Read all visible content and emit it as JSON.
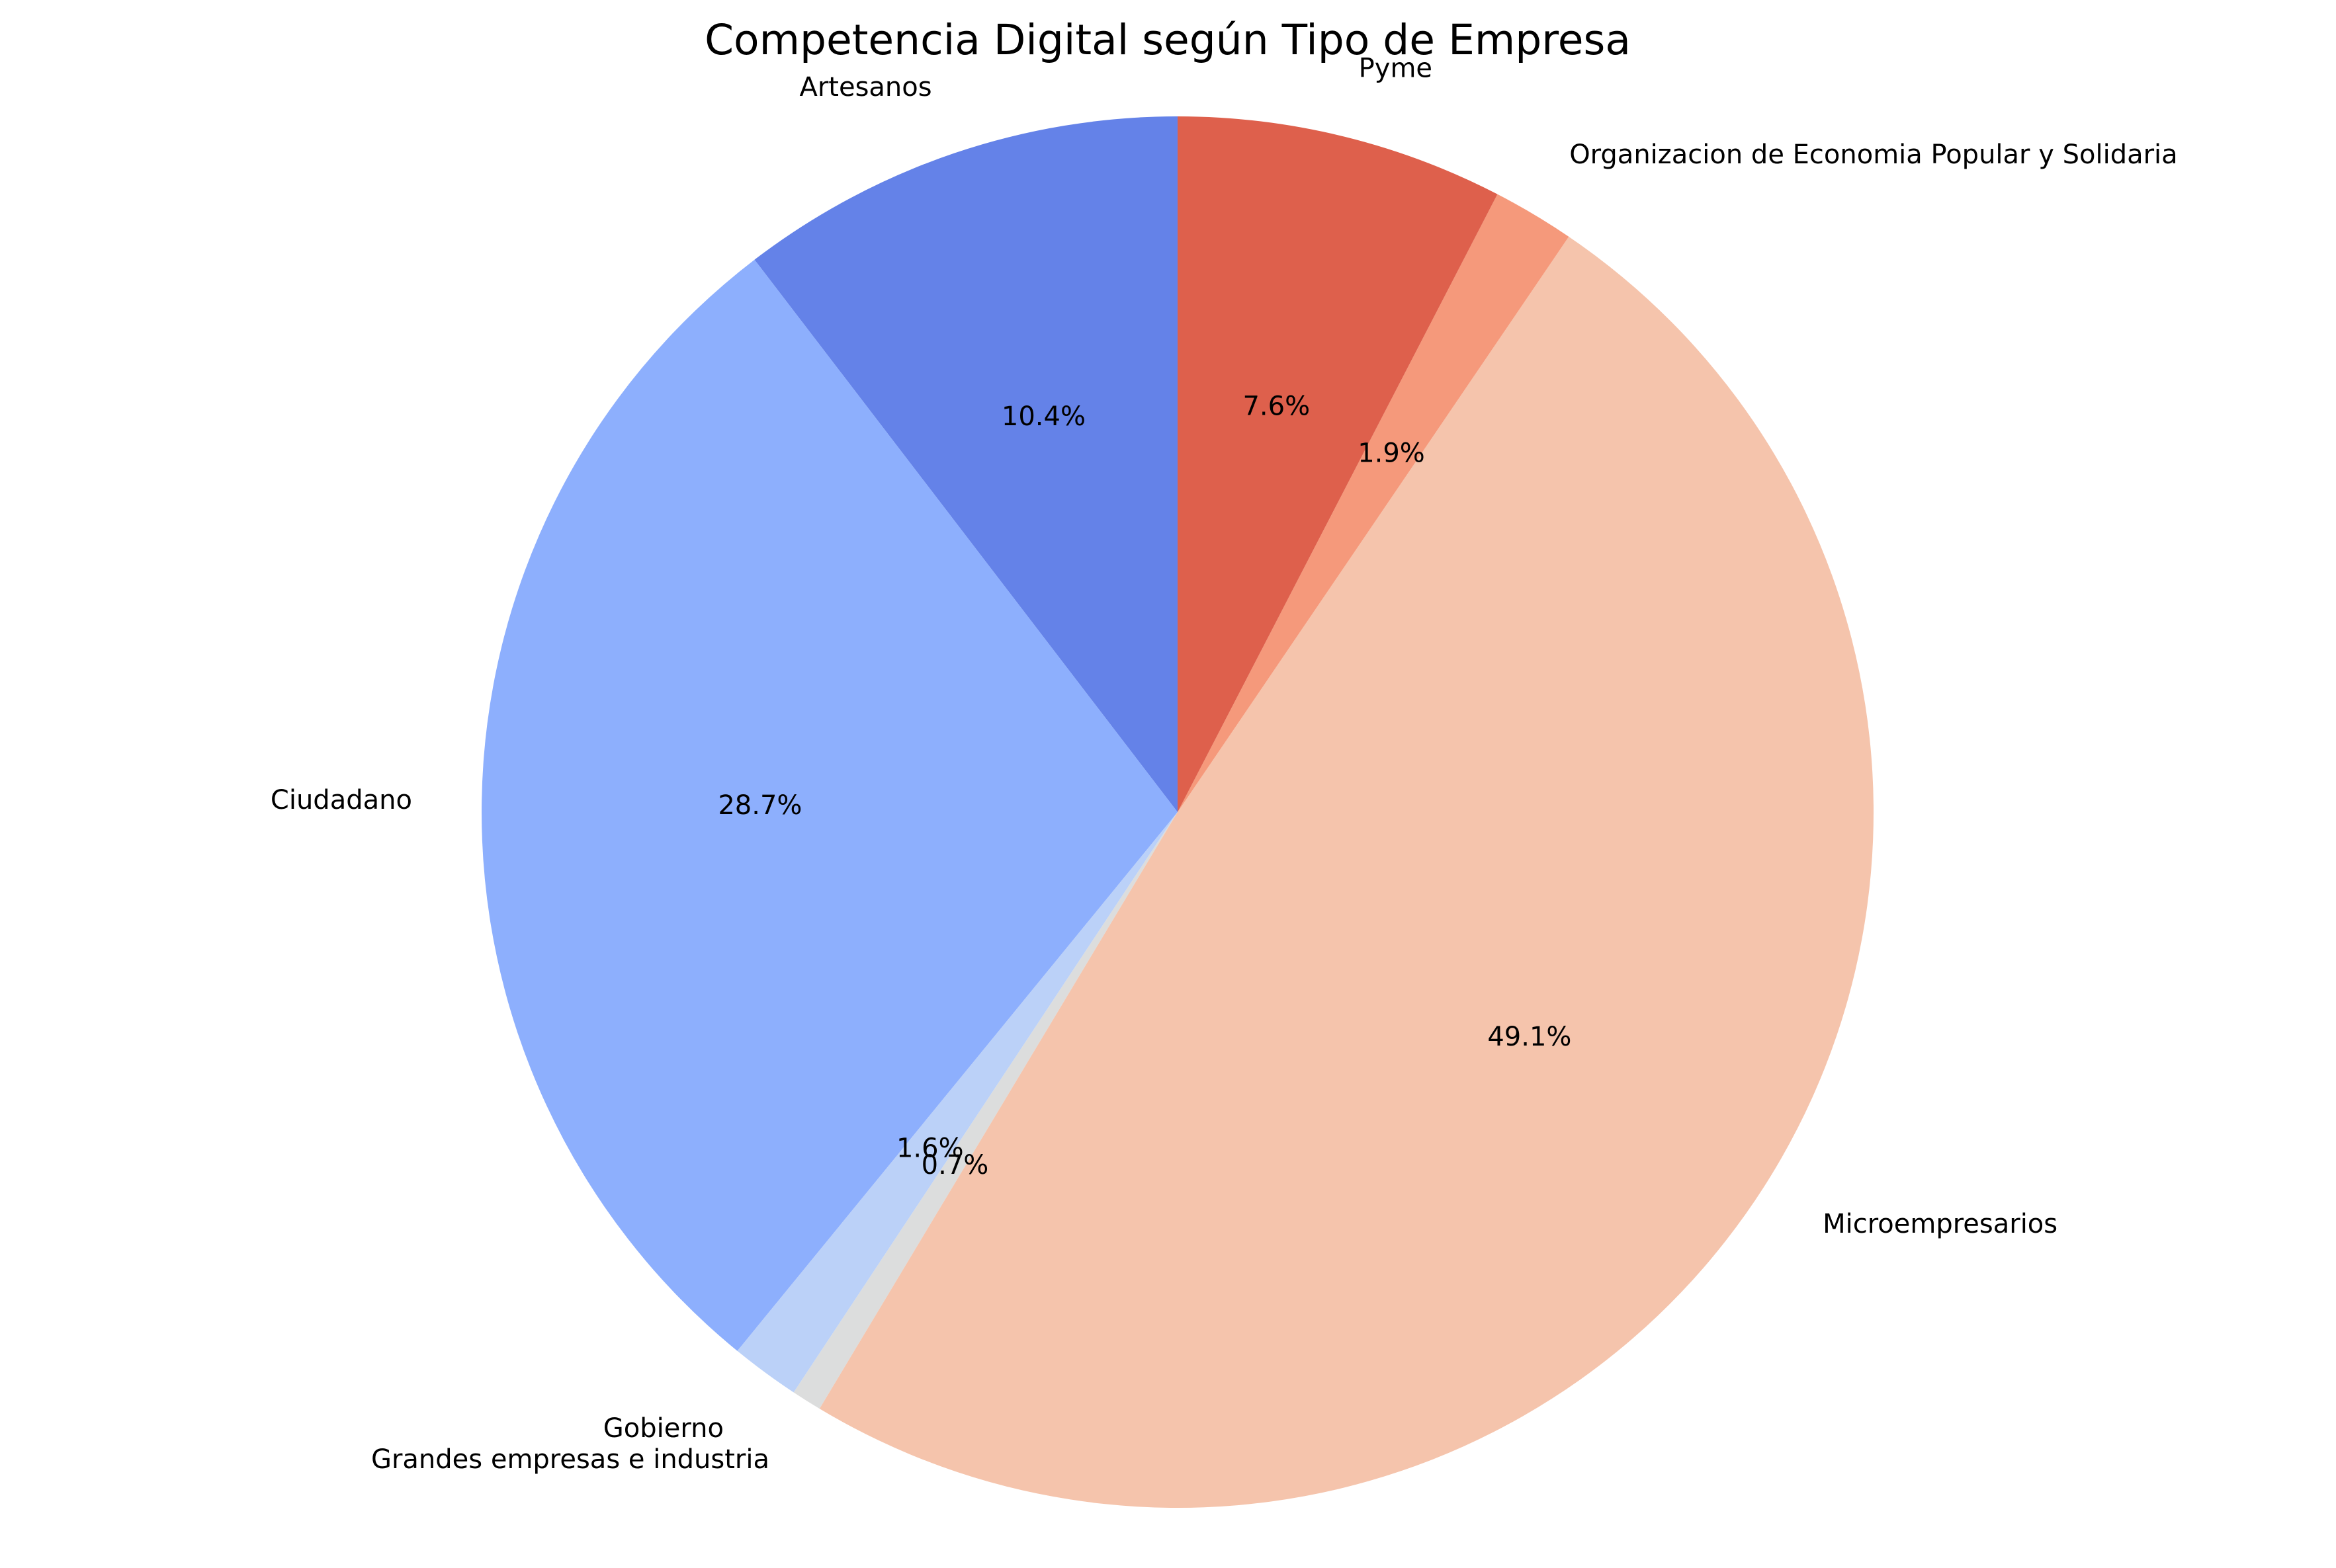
{
  "chart_data": {
    "type": "pie",
    "title": "Competencia Digital según Tipo de Empresa",
    "start_angle_deg": 90,
    "direction": "counterclockwise",
    "legend": "none",
    "slices": [
      {
        "label": "Artesanos",
        "value": 10.4,
        "pct_label": "10.4%",
        "color": "#6482e8"
      },
      {
        "label": "Ciudadano",
        "value": 28.7,
        "pct_label": "28.7%",
        "color": "#8daffd"
      },
      {
        "label": "Gobierno",
        "value": 1.6,
        "pct_label": "1.6%",
        "color": "#bbd1f8"
      },
      {
        "label": "Grandes empresas e industria",
        "value": 0.7,
        "pct_label": "0.7%",
        "color": "#dcdddd"
      },
      {
        "label": "Microempresarios",
        "value": 49.1,
        "pct_label": "49.1%",
        "color": "#f5c4ac"
      },
      {
        "label": "Organizacion de Economia Popular y Solidaria",
        "value": 1.9,
        "pct_label": "1.9%",
        "color": "#f5997b"
      },
      {
        "label": "Pyme",
        "value": 7.6,
        "pct_label": "7.6%",
        "color": "#de604c"
      }
    ]
  }
}
